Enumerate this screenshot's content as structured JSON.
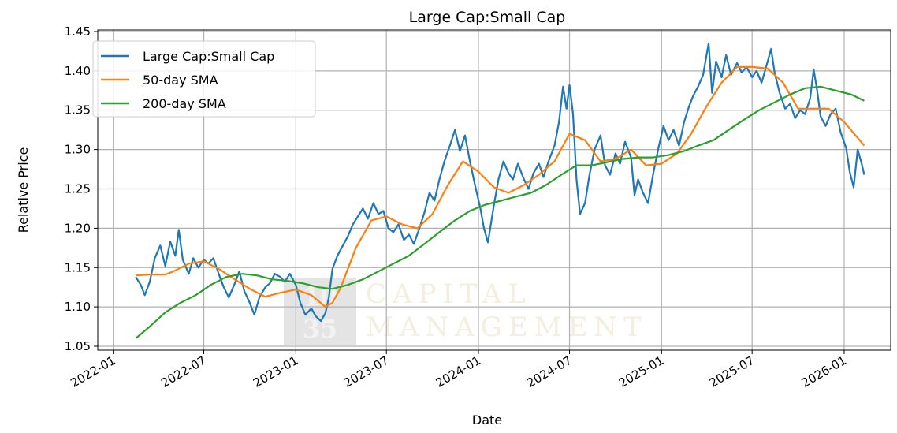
{
  "chart_data": {
    "type": "line",
    "title": "Large Cap:Small Cap",
    "xlabel": "Date",
    "ylabel": "Relative Price",
    "x_ticks": [
      "2022-01",
      "2022-07",
      "2023-01",
      "2023-07",
      "2024-01",
      "2024-07",
      "2025-01",
      "2025-07",
      "2026-01"
    ],
    "y_ticks": [
      "1.05",
      "1.10",
      "1.15",
      "1.20",
      "1.25",
      "1.30",
      "1.35",
      "1.40",
      "1.45"
    ],
    "xlim": [
      "2021-12-01",
      "2026-04-04"
    ],
    "ylim": [
      1.045,
      1.452
    ],
    "grid": true,
    "legend_position": "top-left",
    "series": [
      {
        "name": "Large Cap:Small Cap",
        "color": "#1f77b4",
        "points": [
          [
            "2022-02-15",
            1.138
          ],
          [
            "2022-02-25",
            1.128
          ],
          [
            "2022-03-05",
            1.115
          ],
          [
            "2022-03-15",
            1.132
          ],
          [
            "2022-03-25",
            1.162
          ],
          [
            "2022-04-05",
            1.178
          ],
          [
            "2022-04-15",
            1.152
          ],
          [
            "2022-04-25",
            1.183
          ],
          [
            "2022-05-05",
            1.165
          ],
          [
            "2022-05-12",
            1.198
          ],
          [
            "2022-05-20",
            1.16
          ],
          [
            "2022-06-01",
            1.142
          ],
          [
            "2022-06-10",
            1.162
          ],
          [
            "2022-06-20",
            1.15
          ],
          [
            "2022-07-01",
            1.16
          ],
          [
            "2022-07-10",
            1.155
          ],
          [
            "2022-07-20",
            1.162
          ],
          [
            "2022-08-01",
            1.14
          ],
          [
            "2022-08-10",
            1.125
          ],
          [
            "2022-08-20",
            1.112
          ],
          [
            "2022-09-01",
            1.13
          ],
          [
            "2022-09-10",
            1.145
          ],
          [
            "2022-09-20",
            1.12
          ],
          [
            "2022-10-01",
            1.105
          ],
          [
            "2022-10-10",
            1.09
          ],
          [
            "2022-10-20",
            1.112
          ],
          [
            "2022-11-01",
            1.125
          ],
          [
            "2022-11-10",
            1.13
          ],
          [
            "2022-11-20",
            1.142
          ],
          [
            "2022-12-01",
            1.138
          ],
          [
            "2022-12-10",
            1.132
          ],
          [
            "2022-12-20",
            1.142
          ],
          [
            "2023-01-01",
            1.128
          ],
          [
            "2023-01-10",
            1.105
          ],
          [
            "2023-01-20",
            1.09
          ],
          [
            "2023-02-01",
            1.098
          ],
          [
            "2023-02-10",
            1.088
          ],
          [
            "2023-02-20",
            1.082
          ],
          [
            "2023-03-01",
            1.092
          ],
          [
            "2023-03-08",
            1.112
          ],
          [
            "2023-03-15",
            1.148
          ],
          [
            "2023-03-25",
            1.165
          ],
          [
            "2023-04-05",
            1.178
          ],
          [
            "2023-04-15",
            1.19
          ],
          [
            "2023-04-25",
            1.205
          ],
          [
            "2023-05-05",
            1.215
          ],
          [
            "2023-05-15",
            1.225
          ],
          [
            "2023-05-25",
            1.212
          ],
          [
            "2023-06-05",
            1.232
          ],
          [
            "2023-06-15",
            1.218
          ],
          [
            "2023-06-25",
            1.222
          ],
          [
            "2023-07-05",
            1.2
          ],
          [
            "2023-07-15",
            1.195
          ],
          [
            "2023-07-25",
            1.205
          ],
          [
            "2023-08-05",
            1.185
          ],
          [
            "2023-08-15",
            1.192
          ],
          [
            "2023-08-25",
            1.18
          ],
          [
            "2023-09-05",
            1.2
          ],
          [
            "2023-09-15",
            1.22
          ],
          [
            "2023-09-25",
            1.245
          ],
          [
            "2023-10-05",
            1.235
          ],
          [
            "2023-10-15",
            1.262
          ],
          [
            "2023-10-25",
            1.285
          ],
          [
            "2023-11-05",
            1.305
          ],
          [
            "2023-11-15",
            1.325
          ],
          [
            "2023-11-25",
            1.298
          ],
          [
            "2023-12-05",
            1.318
          ],
          [
            "2023-12-15",
            1.285
          ],
          [
            "2023-12-25",
            1.255
          ],
          [
            "2024-01-05",
            1.225
          ],
          [
            "2024-01-12",
            1.2
          ],
          [
            "2024-01-20",
            1.182
          ],
          [
            "2024-02-01",
            1.23
          ],
          [
            "2024-02-10",
            1.262
          ],
          [
            "2024-02-20",
            1.285
          ],
          [
            "2024-03-01",
            1.27
          ],
          [
            "2024-03-10",
            1.262
          ],
          [
            "2024-03-20",
            1.282
          ],
          [
            "2024-04-01",
            1.262
          ],
          [
            "2024-04-10",
            1.25
          ],
          [
            "2024-04-20",
            1.27
          ],
          [
            "2024-05-01",
            1.282
          ],
          [
            "2024-05-10",
            1.265
          ],
          [
            "2024-05-20",
            1.285
          ],
          [
            "2024-06-01",
            1.305
          ],
          [
            "2024-06-10",
            1.335
          ],
          [
            "2024-06-18",
            1.38
          ],
          [
            "2024-06-25",
            1.352
          ],
          [
            "2024-07-01",
            1.382
          ],
          [
            "2024-07-08",
            1.345
          ],
          [
            "2024-07-15",
            1.262
          ],
          [
            "2024-07-22",
            1.218
          ],
          [
            "2024-08-01",
            1.232
          ],
          [
            "2024-08-10",
            1.268
          ],
          [
            "2024-08-20",
            1.3
          ],
          [
            "2024-09-01",
            1.318
          ],
          [
            "2024-09-10",
            1.28
          ],
          [
            "2024-09-20",
            1.268
          ],
          [
            "2024-10-01",
            1.295
          ],
          [
            "2024-10-10",
            1.282
          ],
          [
            "2024-10-20",
            1.31
          ],
          [
            "2024-11-01",
            1.29
          ],
          [
            "2024-11-08",
            1.242
          ],
          [
            "2024-11-15",
            1.262
          ],
          [
            "2024-11-25",
            1.245
          ],
          [
            "2024-12-05",
            1.232
          ],
          [
            "2024-12-15",
            1.268
          ],
          [
            "2024-12-25",
            1.3
          ],
          [
            "2025-01-05",
            1.33
          ],
          [
            "2025-01-15",
            1.312
          ],
          [
            "2025-01-25",
            1.325
          ],
          [
            "2025-02-05",
            1.305
          ],
          [
            "2025-02-15",
            1.335
          ],
          [
            "2025-02-25",
            1.355
          ],
          [
            "2025-03-05",
            1.368
          ],
          [
            "2025-03-15",
            1.38
          ],
          [
            "2025-03-25",
            1.395
          ],
          [
            "2025-04-05",
            1.435
          ],
          [
            "2025-04-12",
            1.372
          ],
          [
            "2025-04-20",
            1.412
          ],
          [
            "2025-05-01",
            1.392
          ],
          [
            "2025-05-10",
            1.42
          ],
          [
            "2025-05-20",
            1.395
          ],
          [
            "2025-06-01",
            1.41
          ],
          [
            "2025-06-10",
            1.398
          ],
          [
            "2025-06-20",
            1.405
          ],
          [
            "2025-07-01",
            1.392
          ],
          [
            "2025-07-10",
            1.4
          ],
          [
            "2025-07-20",
            1.385
          ],
          [
            "2025-08-01",
            1.412
          ],
          [
            "2025-08-08",
            1.428
          ],
          [
            "2025-08-15",
            1.398
          ],
          [
            "2025-08-25",
            1.372
          ],
          [
            "2025-09-05",
            1.352
          ],
          [
            "2025-09-15",
            1.358
          ],
          [
            "2025-09-25",
            1.34
          ],
          [
            "2025-10-05",
            1.35
          ],
          [
            "2025-10-15",
            1.345
          ],
          [
            "2025-10-25",
            1.365
          ],
          [
            "2025-11-01",
            1.402
          ],
          [
            "2025-11-08",
            1.375
          ],
          [
            "2025-11-15",
            1.342
          ],
          [
            "2025-11-25",
            1.33
          ],
          [
            "2025-12-05",
            1.345
          ],
          [
            "2025-12-15",
            1.352
          ],
          [
            "2025-12-25",
            1.322
          ],
          [
            "2026-01-05",
            1.302
          ],
          [
            "2026-01-12",
            1.272
          ],
          [
            "2026-01-20",
            1.252
          ],
          [
            "2026-01-28",
            1.3
          ],
          [
            "2026-02-05",
            1.282
          ],
          [
            "2026-02-10",
            1.268
          ]
        ]
      },
      {
        "name": "50-day SMA",
        "color": "#ff7f0e",
        "points": [
          [
            "2022-02-15",
            1.14
          ],
          [
            "2022-03-15",
            1.141
          ],
          [
            "2022-04-15",
            1.141
          ],
          [
            "2022-05-01",
            1.145
          ],
          [
            "2022-06-01",
            1.155
          ],
          [
            "2022-07-01",
            1.158
          ],
          [
            "2022-08-01",
            1.148
          ],
          [
            "2022-09-01",
            1.135
          ],
          [
            "2022-10-01",
            1.123
          ],
          [
            "2022-11-01",
            1.113
          ],
          [
            "2022-12-01",
            1.118
          ],
          [
            "2023-01-01",
            1.122
          ],
          [
            "2023-02-01",
            1.115
          ],
          [
            "2023-03-01",
            1.1
          ],
          [
            "2023-03-15",
            1.105
          ],
          [
            "2023-04-01",
            1.125
          ],
          [
            "2023-05-01",
            1.175
          ],
          [
            "2023-06-01",
            1.21
          ],
          [
            "2023-07-01",
            1.215
          ],
          [
            "2023-08-01",
            1.205
          ],
          [
            "2023-09-01",
            1.2
          ],
          [
            "2023-10-01",
            1.218
          ],
          [
            "2023-11-01",
            1.255
          ],
          [
            "2023-12-01",
            1.285
          ],
          [
            "2024-01-01",
            1.272
          ],
          [
            "2024-02-01",
            1.252
          ],
          [
            "2024-03-01",
            1.245
          ],
          [
            "2024-04-01",
            1.255
          ],
          [
            "2024-05-01",
            1.268
          ],
          [
            "2024-06-01",
            1.285
          ],
          [
            "2024-07-01",
            1.32
          ],
          [
            "2024-08-01",
            1.312
          ],
          [
            "2024-09-01",
            1.285
          ],
          [
            "2024-10-01",
            1.288
          ],
          [
            "2024-11-01",
            1.3
          ],
          [
            "2024-12-01",
            1.28
          ],
          [
            "2025-01-01",
            1.282
          ],
          [
            "2025-02-01",
            1.295
          ],
          [
            "2025-03-01",
            1.32
          ],
          [
            "2025-04-01",
            1.355
          ],
          [
            "2025-05-01",
            1.385
          ],
          [
            "2025-06-01",
            1.405
          ],
          [
            "2025-07-01",
            1.405
          ],
          [
            "2025-08-01",
            1.403
          ],
          [
            "2025-09-01",
            1.385
          ],
          [
            "2025-10-01",
            1.352
          ],
          [
            "2025-11-01",
            1.352
          ],
          [
            "2025-12-01",
            1.352
          ],
          [
            "2026-01-01",
            1.335
          ],
          [
            "2026-02-10",
            1.305
          ]
        ]
      },
      {
        "name": "200-day SMA",
        "color": "#2ca02c",
        "points": [
          [
            "2022-02-15",
            1.06
          ],
          [
            "2022-03-15",
            1.075
          ],
          [
            "2022-04-15",
            1.093
          ],
          [
            "2022-05-15",
            1.105
          ],
          [
            "2022-06-15",
            1.115
          ],
          [
            "2022-07-15",
            1.128
          ],
          [
            "2022-08-15",
            1.138
          ],
          [
            "2022-09-15",
            1.142
          ],
          [
            "2022-10-15",
            1.14
          ],
          [
            "2022-11-15",
            1.135
          ],
          [
            "2022-12-15",
            1.133
          ],
          [
            "2023-01-15",
            1.13
          ],
          [
            "2023-02-15",
            1.125
          ],
          [
            "2023-03-15",
            1.123
          ],
          [
            "2023-04-15",
            1.128
          ],
          [
            "2023-05-15",
            1.135
          ],
          [
            "2023-06-15",
            1.145
          ],
          [
            "2023-07-15",
            1.155
          ],
          [
            "2023-08-15",
            1.165
          ],
          [
            "2023-09-15",
            1.18
          ],
          [
            "2023-10-15",
            1.195
          ],
          [
            "2023-11-15",
            1.21
          ],
          [
            "2023-12-15",
            1.222
          ],
          [
            "2024-01-15",
            1.23
          ],
          [
            "2024-02-15",
            1.235
          ],
          [
            "2024-03-15",
            1.24
          ],
          [
            "2024-04-15",
            1.245
          ],
          [
            "2024-05-15",
            1.255
          ],
          [
            "2024-06-15",
            1.268
          ],
          [
            "2024-07-15",
            1.28
          ],
          [
            "2024-08-15",
            1.28
          ],
          [
            "2024-09-15",
            1.284
          ],
          [
            "2024-10-15",
            1.288
          ],
          [
            "2024-11-15",
            1.29
          ],
          [
            "2024-12-15",
            1.29
          ],
          [
            "2025-01-15",
            1.293
          ],
          [
            "2025-02-15",
            1.298
          ],
          [
            "2025-03-15",
            1.305
          ],
          [
            "2025-04-15",
            1.312
          ],
          [
            "2025-05-15",
            1.325
          ],
          [
            "2025-06-15",
            1.338
          ],
          [
            "2025-07-15",
            1.35
          ],
          [
            "2025-08-15",
            1.36
          ],
          [
            "2025-09-15",
            1.37
          ],
          [
            "2025-10-15",
            1.378
          ],
          [
            "2025-11-15",
            1.38
          ],
          [
            "2025-12-15",
            1.375
          ],
          [
            "2026-01-15",
            1.37
          ],
          [
            "2026-02-10",
            1.362
          ]
        ]
      }
    ]
  },
  "watermark": {
    "number": "1035",
    "line1": "CAPITAL",
    "line2": "MANAGEMENT"
  }
}
